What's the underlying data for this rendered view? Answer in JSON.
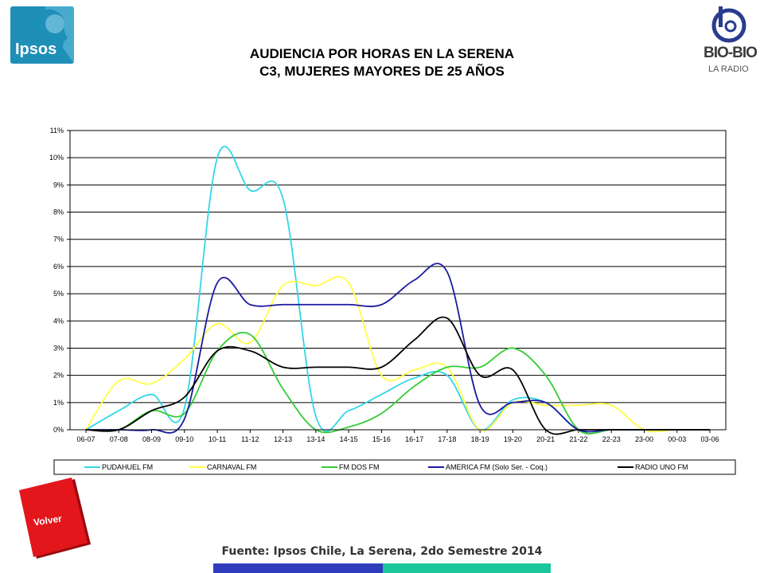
{
  "logos": {
    "ipsos": "Ipsos",
    "biobio": "BIO-BIO",
    "biobio_sub": "LA RADIO"
  },
  "title": {
    "line1": "AUDIENCIA POR HORAS EN LA SERENA",
    "line2": "C3, MUJERES MAYORES DE 25 AÑOS"
  },
  "volver_label": "Volver",
  "source": "Fuente: Ipsos Chile, La Serena, 2do Semestre 2014",
  "colors": {
    "footer_blue": "#2f3dbd",
    "footer_teal": "#19c79a",
    "volver_red": "#e3161c",
    "ipsos_blue": "#1e8fb7"
  },
  "chart_data": {
    "type": "line",
    "categories": [
      "06-07",
      "07-08",
      "08-09",
      "09-10",
      "10-11",
      "11-12",
      "12-13",
      "13-14",
      "14-15",
      "15-16",
      "16-17",
      "17-18",
      "18-19",
      "19-20",
      "20-21",
      "21-22",
      "22-23",
      "23-00",
      "00-03",
      "03-06"
    ],
    "ylim": [
      0,
      11
    ],
    "yticks": [
      "0%",
      "1%",
      "2%",
      "3%",
      "4%",
      "5%",
      "6%",
      "7%",
      "8%",
      "9%",
      "10%",
      "11%"
    ],
    "grid": true,
    "legend_position": "bottom",
    "series": [
      {
        "name": "PUDAHUEL FM",
        "color": "#33d6e8",
        "values": [
          0,
          0.7,
          1.3,
          0.8,
          10.0,
          8.8,
          8.5,
          0.5,
          0.7,
          1.3,
          1.9,
          2.0,
          0,
          1.1,
          1.0,
          0,
          0,
          0,
          0,
          0
        ]
      },
      {
        "name": "CARNAVAL FM",
        "color": "#ffff44",
        "values": [
          0,
          1.8,
          1.7,
          2.6,
          3.9,
          3.2,
          5.3,
          5.3,
          5.4,
          2.0,
          2.2,
          2.3,
          0,
          1.0,
          0.9,
          0.9,
          0.9,
          0,
          0,
          0
        ]
      },
      {
        "name": "FM DOS FM",
        "color": "#33cc33",
        "values": [
          0,
          0,
          0.7,
          0.6,
          2.9,
          3.5,
          1.5,
          0,
          0.1,
          0.6,
          1.6,
          2.3,
          2.3,
          3.0,
          2.0,
          0,
          0,
          0,
          0,
          0
        ]
      },
      {
        "name": "AMERICA FM  (Solo Ser. - Coq.)",
        "color": "#1a1a9e",
        "values": [
          0,
          0,
          0,
          0.4,
          5.4,
          4.6,
          4.6,
          4.6,
          4.6,
          4.6,
          5.5,
          5.8,
          0.9,
          1.0,
          1.0,
          0,
          0,
          0,
          0,
          0
        ]
      },
      {
        "name": "RADIO UNO FM",
        "color": "#000000",
        "values": [
          0,
          0,
          0.7,
          1.2,
          2.9,
          2.9,
          2.3,
          2.3,
          2.3,
          2.3,
          3.3,
          4.1,
          2.0,
          2.2,
          0,
          0,
          0,
          0,
          0,
          0
        ]
      }
    ]
  }
}
